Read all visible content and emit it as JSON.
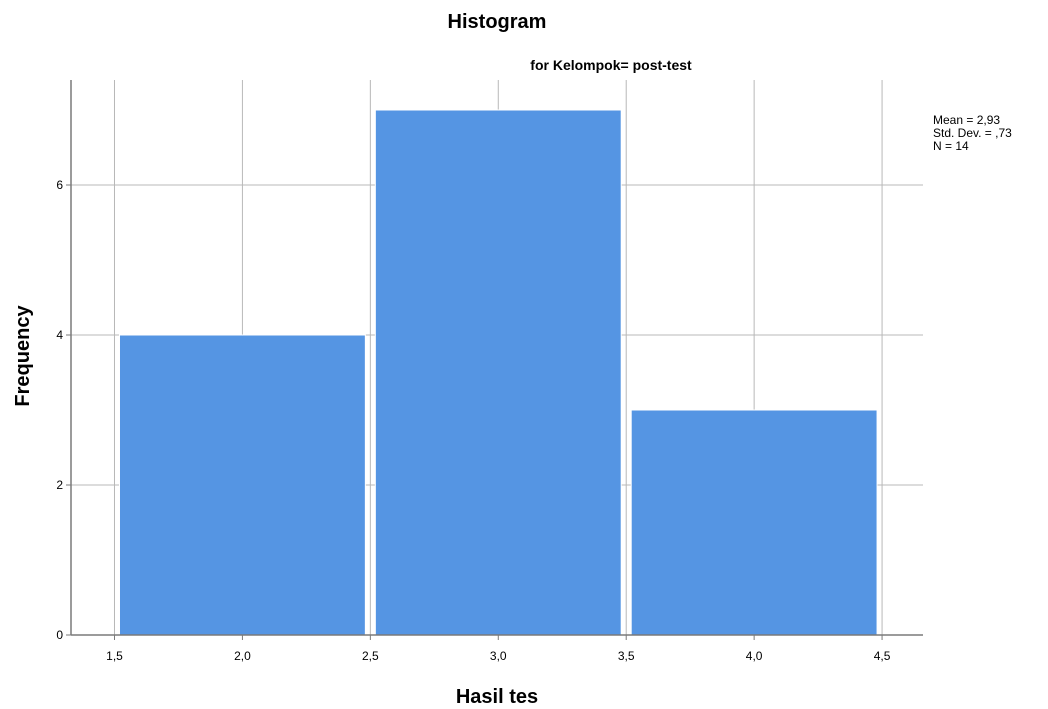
{
  "chart_data": {
    "type": "bar",
    "title": "Histogram",
    "subtitle": "for Kelompok= post-test",
    "xlabel": "Hasil tes",
    "ylabel": "Frequency",
    "bins": [
      {
        "from": 1.5,
        "to": 2.5,
        "value": 4
      },
      {
        "from": 2.5,
        "to": 3.5,
        "value": 7
      },
      {
        "from": 3.5,
        "to": 4.5,
        "value": 3
      }
    ],
    "x_ticks": [
      "1,5",
      "2,0",
      "2,5",
      "3,0",
      "3,5",
      "4,0",
      "4,5"
    ],
    "x_tick_values": [
      1.5,
      2.0,
      2.5,
      3.0,
      3.5,
      4.0,
      4.5
    ],
    "y_ticks": [
      "0",
      "2",
      "4",
      "6"
    ],
    "y_tick_values": [
      0,
      2,
      4,
      6
    ],
    "xlim": [
      1.33,
      4.66
    ],
    "ylim": [
      0,
      7.4
    ],
    "grid": true,
    "bar_color": "#5595e3",
    "stats": {
      "mean": "Mean = 2,93",
      "std_dev": "Std. Dev. = ,73",
      "n": "N = 14"
    },
    "stats_placement": "top-right"
  }
}
